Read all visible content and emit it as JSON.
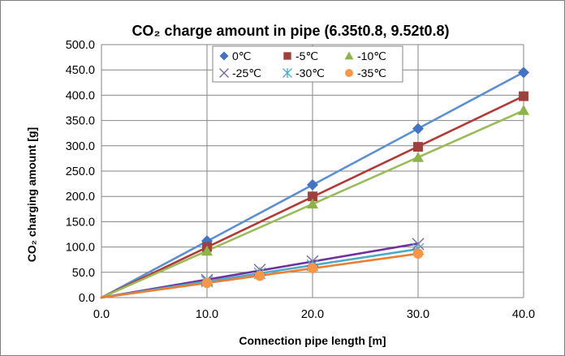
{
  "chart_data": {
    "type": "scatter",
    "title": "CO₂ charge amount in pipe (6.35t0.8, 9.52t0.8)",
    "xlabel": "Connection pipe length [m]",
    "ylabel": "CO₂ charging amount [g]",
    "xlim": [
      0,
      40
    ],
    "ylim": [
      0,
      500
    ],
    "x_ticks": [
      "0.0",
      "10.0",
      "20.0",
      "30.0",
      "40.0"
    ],
    "y_ticks": [
      "0.0",
      "50.0",
      "100.0",
      "150.0",
      "200.0",
      "250.0",
      "300.0",
      "350.0",
      "400.0",
      "450.0",
      "500.0"
    ],
    "grid": true,
    "legend_position": "top-center",
    "trendlines": true,
    "series": [
      {
        "name": "0℃",
        "marker": "diamond",
        "color": "#4472C4",
        "line_color": "#5B8FD1",
        "x": [
          10,
          20,
          30,
          40
        ],
        "y": [
          112,
          223,
          334,
          445
        ]
      },
      {
        "name": "-5℃",
        "marker": "square",
        "color": "#A0403C",
        "line_color": "#B23A36",
        "x": [
          10,
          20,
          30,
          40
        ],
        "y": [
          100,
          200,
          298,
          398
        ]
      },
      {
        "name": "-10℃",
        "marker": "triangle",
        "color": "#8CB449",
        "line_color": "#9BBB59",
        "x": [
          10,
          20,
          30,
          40
        ],
        "y": [
          92,
          185,
          277,
          370
        ]
      },
      {
        "name": "-25℃",
        "marker": "x",
        "color": "#8064A2",
        "line_color": "#7030A0",
        "x": [
          10,
          15,
          20,
          30
        ],
        "y": [
          35,
          55,
          72,
          106
        ]
      },
      {
        "name": "-30℃",
        "marker": "star",
        "color": "#4BACC6",
        "line_color": "#4BACC6",
        "x": [
          10,
          15,
          20,
          30
        ],
        "y": [
          32,
          48,
          64,
          96
        ]
      },
      {
        "name": "-35℃",
        "marker": "circle",
        "color": "#F79646",
        "line_color": "#ED7D31",
        "x": [
          10,
          15,
          20,
          30
        ],
        "y": [
          29,
          43,
          58,
          87
        ]
      }
    ]
  }
}
